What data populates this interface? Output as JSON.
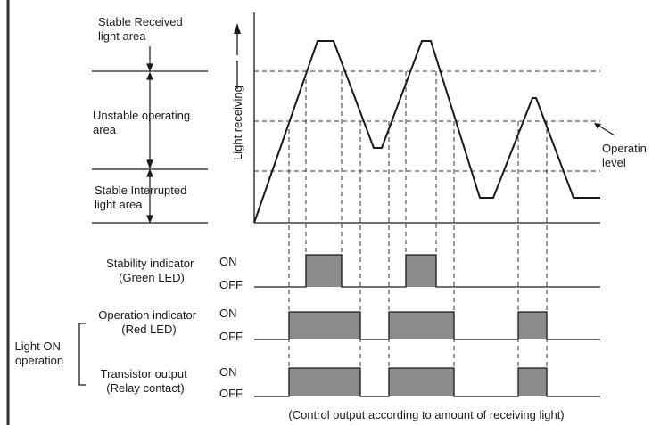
{
  "zones": {
    "received": [
      "Stable Received",
      "light area"
    ],
    "unstable": [
      "Unstable operating",
      "area"
    ],
    "interrupted": [
      "Stable Interrupted",
      "light area"
    ]
  },
  "axis_label": "Light receiving",
  "operation_level": [
    "Operatin",
    "level"
  ],
  "signals": [
    {
      "label": [
        "Stability indicator",
        "(Green LED)"
      ],
      "on": "ON",
      "off": "OFF"
    },
    {
      "label": [
        "Operation indicator",
        "(Red LED)"
      ],
      "on": "ON",
      "off": "OFF"
    },
    {
      "label": [
        "Transistor output",
        "(Relay contact)"
      ],
      "on": "ON",
      "off": "OFF"
    }
  ],
  "group_label": [
    "Light ON",
    "operation"
  ],
  "caption": "(Control output according to amount of receiving light)",
  "colors": {
    "pulse_fill": "#8c8c8c",
    "line": "#1a1a1a"
  }
}
